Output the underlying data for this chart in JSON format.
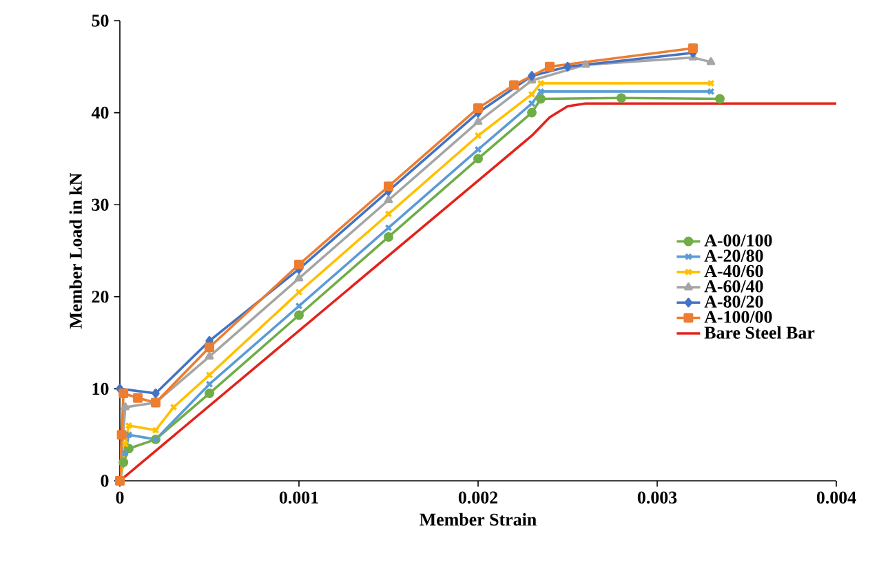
{
  "chart_data": {
    "type": "line",
    "xlabel": "Member Strain",
    "ylabel": "Member Load in kN",
    "xlim": [
      0,
      0.004
    ],
    "ylim": [
      0,
      50
    ],
    "xticks": [
      0,
      0.001,
      0.002,
      0.003,
      0.004
    ],
    "yticks": [
      0,
      10,
      20,
      30,
      40,
      50
    ],
    "grid": false,
    "legend": "right",
    "series": [
      {
        "name": "A-00/100",
        "color": "#70ad47",
        "marker": "circle",
        "x": [
          0,
          2e-05,
          5e-05,
          0.0002,
          0.0005,
          0.001,
          0.0015,
          0.002,
          0.0023,
          0.00235,
          0.0028,
          0.00335
        ],
        "values": [
          0,
          2,
          3.5,
          4.5,
          9.5,
          18,
          26.5,
          35,
          40,
          41.5,
          41.6,
          41.5
        ]
      },
      {
        "name": "A-20/80",
        "color": "#5b9bd5",
        "marker": "cross",
        "x": [
          0,
          3e-05,
          5e-05,
          0.0002,
          0.0005,
          0.001,
          0.0015,
          0.002,
          0.0023,
          0.00235,
          0.0033
        ],
        "values": [
          0,
          3,
          5,
          4.5,
          10.5,
          19,
          27.5,
          36,
          41,
          42.3,
          42.3
        ]
      },
      {
        "name": "A-40/60",
        "color": "#ffc000",
        "marker": "cross",
        "x": [
          0,
          3e-05,
          5e-05,
          0.0002,
          0.0003,
          0.0005,
          0.001,
          0.0015,
          0.002,
          0.0023,
          0.00235,
          0.0033
        ],
        "values": [
          0,
          4,
          6,
          5.5,
          8,
          11.5,
          20.5,
          29,
          37.5,
          42,
          43.2,
          43.2
        ]
      },
      {
        "name": "A-60/40",
        "color": "#a5a5a5",
        "marker": "triangle",
        "x": [
          0,
          3e-05,
          0.0002,
          0.0005,
          0.001,
          0.0015,
          0.002,
          0.0023,
          0.0026,
          0.0032,
          0.0033
        ],
        "values": [
          0,
          8,
          8.5,
          13.5,
          22,
          30.5,
          39,
          43.5,
          45.2,
          46,
          45.5
        ]
      },
      {
        "name": "A-80/20",
        "color": "#4472c4",
        "marker": "diamond",
        "x": [
          0,
          0.0002,
          0.0005,
          0.001,
          0.0015,
          0.002,
          0.0023,
          0.0025,
          0.0032
        ],
        "values": [
          10,
          9.5,
          15.2,
          23,
          31.5,
          40,
          44,
          45,
          46.5
        ]
      },
      {
        "name": "A-100/00",
        "color": "#ed7d31",
        "marker": "square",
        "x": [
          0,
          1e-05,
          2e-05,
          0.0001,
          0.0002,
          0.0005,
          0.001,
          0.0015,
          0.002,
          0.0022,
          0.0024,
          0.0032
        ],
        "values": [
          0,
          5,
          9.5,
          9,
          8.5,
          14.5,
          23.5,
          32,
          40.5,
          43,
          45,
          47
        ]
      },
      {
        "name": "Bare Steel Bar",
        "color": "#e3231b",
        "marker": "none",
        "x": [
          0,
          0.0023,
          0.0024,
          0.0025,
          0.0026,
          0.004
        ],
        "values": [
          0,
          37.5,
          39.5,
          40.7,
          41,
          41
        ]
      }
    ]
  }
}
